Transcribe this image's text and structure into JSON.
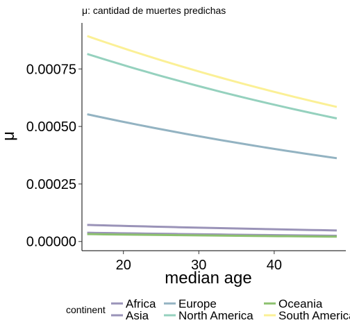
{
  "chart_data": {
    "type": "line",
    "title": "μ: cantidad de muertes predichas",
    "xlabel": "median age",
    "ylabel": "μ",
    "xlim": [
      14.5,
      49.5
    ],
    "ylim": [
      -4e-05,
      0.00095
    ],
    "x_ticks": [
      20,
      30,
      40
    ],
    "x_tick_labels": [
      "20",
      "30",
      "40"
    ],
    "y_ticks": [
      0,
      0.00025,
      0.0005,
      0.00075
    ],
    "y_tick_labels": [
      "0.00000",
      "0.00025",
      "0.00050",
      "0.00075"
    ],
    "grid": false,
    "legend": {
      "position": "bottom",
      "title": "continent",
      "entries": [
        "Africa",
        "Asia",
        "Europe",
        "North America",
        "Oceania",
        "South America"
      ]
    },
    "series": [
      {
        "name": "Africa",
        "color": "#9a93b8",
        "x": [
          15.2,
          48.3
        ],
        "y": [
          7.2e-05,
          4.8e-05
        ]
      },
      {
        "name": "Asia",
        "color": "#9a93b8",
        "x": [
          15.2,
          48.3
        ],
        "y": [
          3.8e-05,
          2.5e-05
        ]
      },
      {
        "name": "Europe",
        "color": "#93b3c2",
        "x": [
          15.2,
          48.3
        ],
        "y": [
          0.000553,
          0.000362
        ]
      },
      {
        "name": "North America",
        "color": "#95d1be",
        "x": [
          15.2,
          48.3
        ],
        "y": [
          0.000815,
          0.000535
        ]
      },
      {
        "name": "Oceania",
        "color": "#8cc06e",
        "x": [
          15.2,
          48.3
        ],
        "y": [
          3.2e-05,
          2.1e-05
        ]
      },
      {
        "name": "South America",
        "color": "#fbf096",
        "x": [
          15.2,
          48.3
        ],
        "y": [
          0.000893,
          0.000585
        ]
      }
    ]
  }
}
